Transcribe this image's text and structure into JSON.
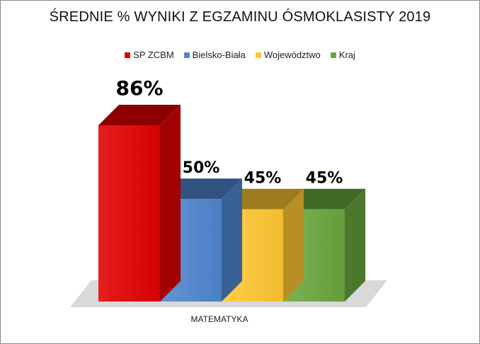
{
  "chart_data": {
    "type": "bar",
    "title": "ŚREDNIE % WYNIKI Z EGZAMINU ÓSMOKLASISTY 2019",
    "categories": [
      "MATEMATYKA"
    ],
    "series": [
      {
        "name": "SP ZCBM",
        "values": [
          86
        ],
        "label": "86%",
        "color": "#e30000"
      },
      {
        "name": "Bielsko-Biała",
        "values": [
          50
        ],
        "label": "50%",
        "color": "#4f86cf"
      },
      {
        "name": "Województwo",
        "values": [
          45
        ],
        "label": "45%",
        "color": "#ffc732"
      },
      {
        "name": "Kraj",
        "values": [
          45
        ],
        "label": "45%",
        "color": "#6aa73e"
      }
    ],
    "legend_position": "top",
    "ylim": [
      0,
      100
    ],
    "grid": false,
    "style": "3d-column"
  }
}
